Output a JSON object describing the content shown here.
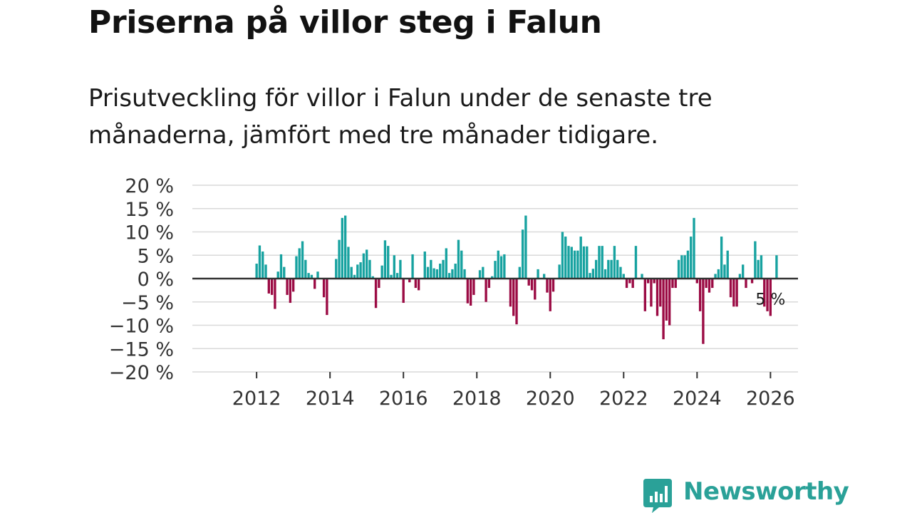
{
  "title": "Priserna på villor steg i Falun",
  "subtitle": "Prisutveckling för villor i Falun under de senaste tre månaderna, jämfört med tre månader tidigare.",
  "brand": {
    "name": "Newsworthy",
    "color": "#2aa198",
    "icon": "bar-chart-speech-bubble-icon"
  },
  "colors": {
    "positive": "#17a2a0",
    "negative": "#9b0b44",
    "grid": "#d9d9d9",
    "zero_line": "#333333"
  },
  "chart_data": {
    "type": "bar",
    "title": "Priserna på villor steg i Falun",
    "xlabel": "",
    "ylabel": "",
    "ylim": [
      -20,
      20
    ],
    "y_ticks": [
      20,
      15,
      10,
      5,
      0,
      -5,
      -10,
      -15,
      -20
    ],
    "y_tick_labels": [
      "20 %",
      "15 %",
      "10 %",
      "5 %",
      "0 %",
      "−5 %",
      "−10 %",
      "−15 %",
      "−20 %"
    ],
    "x_ticks": [
      2012,
      2014,
      2016,
      2018,
      2020,
      2022,
      2024,
      2026
    ],
    "x_range": [
      2010.25,
      2026.75
    ],
    "grid": true,
    "annotation": {
      "text": "5 %",
      "x": 2026.0
    },
    "start": 2012.0,
    "step": 0.08333,
    "values": [
      3.2,
      7.1,
      5.8,
      3.0,
      -3.2,
      -3.5,
      -6.5,
      1.5,
      5.2,
      2.5,
      -3.5,
      -5.2,
      -2.8,
      4.8,
      6.5,
      8.0,
      4.0,
      1.2,
      0.8,
      -2.2,
      1.5,
      0.0,
      -4.0,
      -7.8,
      0.0,
      0.0,
      4.2,
      8.3,
      13.0,
      13.5,
      6.8,
      2.5,
      0.8,
      3.0,
      3.5,
      5.4,
      6.2,
      4.0,
      0.5,
      -6.3,
      -2.0,
      2.8,
      8.2,
      7.0,
      0.8,
      5.0,
      1.2,
      4.0,
      -5.2,
      0.0,
      -0.8,
      5.2,
      -2.0,
      -2.5,
      0.0,
      5.8,
      2.5,
      4.0,
      2.2,
      2.0,
      3.2,
      4.0,
      6.5,
      1.2,
      2.0,
      3.2,
      8.3,
      6.0,
      2.0,
      -5.3,
      -5.8,
      -3.5,
      0.0,
      1.8,
      2.5,
      -5.0,
      -2.0,
      0.5,
      3.8,
      6.0,
      4.8,
      5.2,
      0.0,
      -6.0,
      -8.0,
      -9.8,
      2.5,
      10.5,
      13.5,
      -1.5,
      -2.5,
      -4.5,
      2.0,
      0.0,
      1.0,
      -3.0,
      -7.0,
      -2.8,
      0.0,
      3.0,
      10.0,
      9.0,
      7.0,
      6.8,
      6.0,
      6.0,
      9.0,
      6.9,
      6.9,
      1.2,
      2.1,
      4.0,
      7.0,
      7.0,
      2.0,
      4.0,
      4.0,
      7.0,
      4.0,
      2.5,
      1.0,
      -2.0,
      -1.0,
      -2.0,
      7.0,
      0.0,
      1.0,
      -7.0,
      -1.0,
      -6.0,
      -1.0,
      -8.0,
      -6.0,
      -13.0,
      -9.0,
      -10.0,
      -2.0,
      -2.0,
      4.0,
      5.0,
      5.0,
      6.0,
      9.0,
      13.0,
      -1.0,
      -7.0,
      -14.0,
      -2.0,
      -3.0,
      -2.0,
      1.0,
      2.0,
      9.0,
      3.0,
      6.0,
      -4.0,
      -6.0,
      -6.0,
      1.0,
      3.0,
      -2.0,
      0.0,
      -1.0,
      8.0,
      4.0,
      5.0,
      -6.0,
      -7.0,
      -8.0,
      0.0,
      5.0
    ]
  }
}
